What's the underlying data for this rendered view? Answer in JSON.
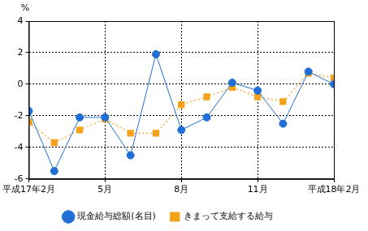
{
  "chart_data": {
    "type": "line",
    "y_label": "%",
    "categories": [
      "平成17年2月",
      null,
      null,
      "5月",
      null,
      null,
      "8月",
      null,
      null,
      "11月",
      null,
      null,
      "平成18年2月"
    ],
    "series": [
      {
        "name": "現金給与総額(名目)",
        "color": "#1f6fd6",
        "marker": "circle",
        "line_style": "solid",
        "values": [
          -1.7,
          -5.5,
          -2.1,
          -2.1,
          -4.5,
          1.9,
          -2.9,
          -2.1,
          0.1,
          -0.4,
          -2.5,
          0.8,
          0.0
        ]
      },
      {
        "name": "きまって支給する給与",
        "color": "#f5a21b",
        "marker": "square",
        "line_style": "dotted",
        "values": [
          -2.4,
          -3.7,
          -2.9,
          -2.2,
          -3.1,
          -3.1,
          -1.3,
          -0.8,
          -0.2,
          -0.8,
          -1.1,
          0.7,
          0.4
        ]
      }
    ],
    "ylim": [
      -6,
      4
    ],
    "yticks": [
      -6,
      -4,
      -2,
      0,
      2,
      4
    ],
    "grid": true,
    "legend": "bottom"
  }
}
